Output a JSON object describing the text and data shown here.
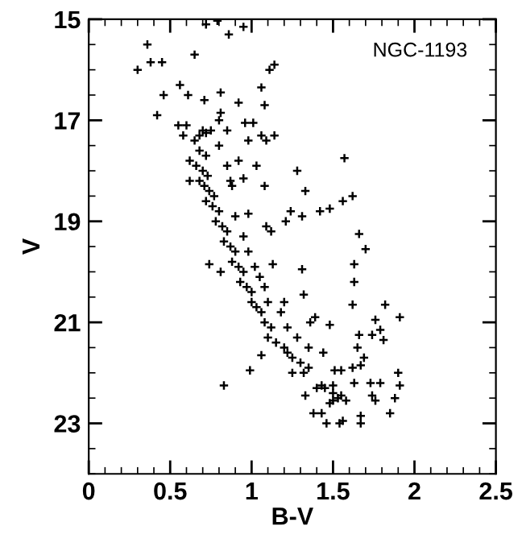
{
  "chart_data": {
    "type": "scatter",
    "xlabel": "B-V",
    "ylabel": "V",
    "annotations": [
      "NGC-1193"
    ],
    "xlim": [
      0,
      2.5
    ],
    "ylim": [
      24,
      15
    ],
    "xticks": [
      0,
      0.5,
      1,
      1.5,
      2,
      2.5
    ],
    "yticks": [
      15,
      17,
      19,
      21,
      23
    ],
    "grid": false,
    "marker": "cross",
    "series": [
      {
        "color": "#000000",
        "x": [
          0.3,
          0.36,
          0.38,
          0.45,
          0.72,
          0.79,
          0.86,
          0.95,
          0.65,
          0.56,
          0.46,
          0.42,
          0.61,
          0.81,
          0.71,
          0.92,
          1.06,
          1.08,
          1.14,
          1.11,
          0.55,
          0.81,
          0.96,
          1.01,
          1.06,
          1.14,
          0.98,
          1.09,
          0.92,
          1.03,
          0.87,
          0.95,
          1.08,
          1.28,
          1.33,
          1.57,
          1.56,
          1.62,
          1.24,
          1.42,
          1.31,
          1.48,
          1.21,
          1.09,
          0.98,
          1.12,
          1.66,
          1.7,
          1.31,
          1.32,
          1.63,
          1.63,
          1.62,
          1.82,
          1.91,
          0.74,
          0.81,
          1.13,
          1.06,
          0.99,
          0.83,
          1.76,
          1.79,
          1.81,
          1.66,
          1.74,
          1.65,
          1.69,
          1.67,
          1.9,
          1.91,
          1.73,
          1.79,
          1.74,
          1.76,
          1.88,
          1.85,
          1.67,
          1.67,
          1.46,
          1.54,
          1.56,
          1.38,
          1.43,
          1.33,
          1.44,
          1.48,
          1.51,
          1.55,
          1.39,
          1.43,
          1.5,
          1.55,
          1.53,
          1.58,
          1.5,
          1.48,
          1.62,
          1.63,
          0.68,
          0.7,
          0.72,
          0.75,
          0.65,
          0.68,
          0.72,
          0.66,
          0.7,
          0.73,
          0.68,
          0.71,
          0.74,
          0.77,
          0.72,
          0.76,
          0.8,
          0.78,
          0.82,
          0.85,
          0.83,
          0.87,
          0.9,
          0.88,
          0.92,
          0.95,
          0.93,
          0.97,
          1.0,
          1.0,
          1.03,
          1.06,
          1.08,
          1.12,
          1.1,
          1.15,
          1.2,
          1.22,
          1.25,
          1.3,
          1.32,
          1.35,
          1.4,
          1.45,
          1.5,
          0.62,
          0.8,
          0.85,
          0.88,
          0.62,
          0.9,
          0.95,
          0.98,
          1.02,
          1.05,
          1.08,
          1.1,
          1.18,
          1.22,
          1.28,
          1.35,
          1.25,
          1.36,
          1.2,
          0.8,
          0.85,
          0.6,
          0.58
        ],
        "values": [
          16.0,
          15.5,
          15.85,
          15.85,
          15.1,
          15.03,
          15.3,
          15.15,
          15.7,
          16.3,
          16.5,
          16.9,
          16.5,
          16.45,
          16.6,
          16.65,
          16.35,
          16.7,
          15.9,
          16.0,
          17.1,
          16.85,
          17.05,
          17.05,
          17.3,
          17.3,
          17.4,
          17.4,
          17.8,
          17.9,
          18.2,
          18.15,
          18.3,
          18.0,
          18.4,
          17.75,
          18.6,
          18.5,
          18.8,
          18.8,
          18.9,
          18.75,
          19.0,
          19.1,
          18.85,
          19.2,
          19.25,
          19.55,
          19.95,
          20.45,
          19.85,
          20.2,
          20.65,
          20.65,
          20.9,
          19.85,
          20.0,
          19.85,
          21.65,
          21.95,
          22.25,
          20.95,
          21.15,
          21.35,
          21.25,
          21.25,
          21.5,
          21.7,
          21.85,
          22.0,
          22.25,
          22.2,
          22.2,
          22.45,
          22.55,
          22.5,
          22.8,
          22.85,
          23.0,
          23.0,
          23.0,
          22.95,
          22.8,
          22.8,
          22.45,
          21.6,
          21.05,
          21.95,
          21.95,
          20.9,
          22.25,
          22.25,
          22.45,
          22.5,
          22.55,
          22.55,
          22.6,
          21.9,
          22.2,
          17.3,
          17.2,
          17.25,
          17.2,
          17.4,
          17.6,
          17.7,
          17.9,
          18.0,
          18.1,
          18.2,
          18.3,
          18.4,
          18.5,
          18.6,
          18.7,
          18.8,
          19.0,
          19.1,
          19.2,
          19.4,
          19.5,
          19.6,
          19.8,
          19.9,
          20.0,
          20.2,
          20.3,
          20.4,
          20.6,
          20.7,
          20.8,
          21.0,
          21.1,
          21.3,
          21.4,
          21.5,
          21.6,
          21.7,
          21.8,
          22.0,
          21.9,
          22.3,
          22.3,
          22.4,
          17.8,
          17.5,
          17.9,
          18.3,
          18.2,
          18.9,
          19.3,
          19.6,
          19.9,
          20.1,
          20.3,
          20.6,
          20.8,
          21.1,
          21.3,
          21.5,
          22.0,
          21.0,
          20.6,
          17.0,
          17.2,
          17.1,
          17.3
        ]
      }
    ]
  }
}
